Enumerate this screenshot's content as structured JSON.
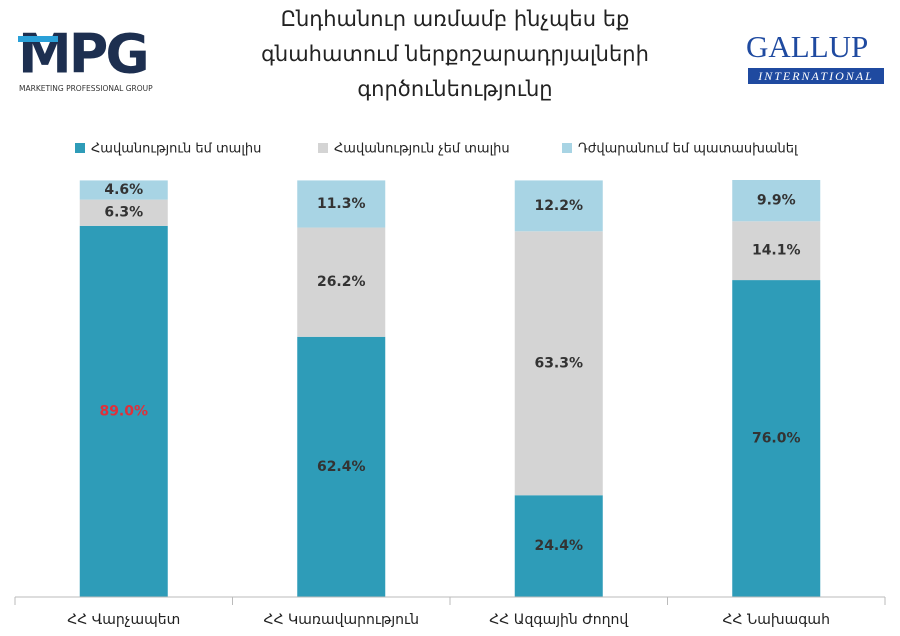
{
  "logos": {
    "mpg": "MPG",
    "mpg_sub": "MARKETING PROFESSIONAL GROUP",
    "gallup": "GALLUP",
    "gallup_sub": "INTERNATIONAL"
  },
  "chart_data": {
    "type": "stacked-bar",
    "title": [
      "Ընդհանուր առմամբ ինչպես եք",
      "գնահատում ներքոշարադրյալների",
      "գործունեությունը"
    ],
    "categories": [
      "ՀՀ Վարչապետ",
      "ՀՀ Կառավարություն",
      "ՀՀ Ազգային Ժողով",
      "ՀՀ Նախագահ"
    ],
    "ylim": [
      0,
      100
    ],
    "series": [
      {
        "name": "Հավանություն եմ տալիս",
        "color": "#2e9cb8",
        "values": [
          89.0,
          62.4,
          24.4,
          76.0
        ],
        "value_labels": [
          "89.0%",
          "62.4%",
          "24.4%",
          "76.0%"
        ],
        "label_colors": [
          "#e0303a",
          "#333333",
          "#333333",
          "#333333"
        ]
      },
      {
        "name": "Հավանություն չեմ տալիս",
        "color": "#d4d4d4",
        "values": [
          6.3,
          26.2,
          63.3,
          14.1
        ],
        "value_labels": [
          "6.3%",
          "26.2%",
          "63.3%",
          "14.1%"
        ],
        "label_colors": [
          "#333333",
          "#333333",
          "#333333",
          "#333333"
        ]
      },
      {
        "name": "Դժվարանում եմ պատասխանել",
        "color": "#a8d4e4",
        "values": [
          4.6,
          11.3,
          12.2,
          9.9
        ],
        "value_labels": [
          "4.6%",
          "11.3%",
          "12.2%",
          "9.9%"
        ],
        "label_colors": [
          "#333333",
          "#333333",
          "#333333",
          "#333333"
        ]
      }
    ]
  }
}
